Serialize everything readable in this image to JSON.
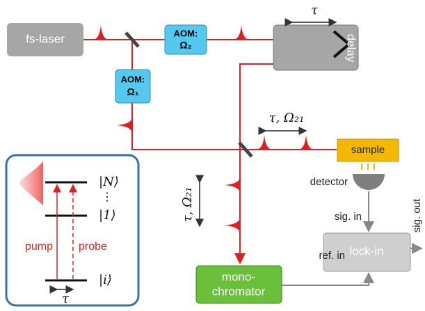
{
  "nodes": {
    "laser": {
      "label": "fs-laser"
    },
    "aom2": {
      "line1": "AOM:",
      "line2": "Ω₂"
    },
    "aom1": {
      "line1": "AOM:",
      "line2": "Ω₁"
    },
    "delay": {
      "label": "delay",
      "tau": "τ"
    },
    "sample": {
      "label": "sample"
    },
    "detector": {
      "label": "detector"
    },
    "lockin": {
      "label": "lock-in",
      "sig_in": "sig. in",
      "sig_out": "sig. out",
      "ref_in": "ref. in"
    },
    "monochromator": {
      "line1": "mono-",
      "line2": "chromator"
    }
  },
  "annotations": {
    "probe_pair": "τ, Ω₂₁",
    "detected_pair": "τ, Ω₂₁"
  },
  "inset": {
    "level_n": "|N⟩",
    "dots": "⋮",
    "level_1": "|1⟩",
    "level_i": "|i⟩",
    "pump": "pump",
    "probe": "probe",
    "tau": "τ"
  }
}
